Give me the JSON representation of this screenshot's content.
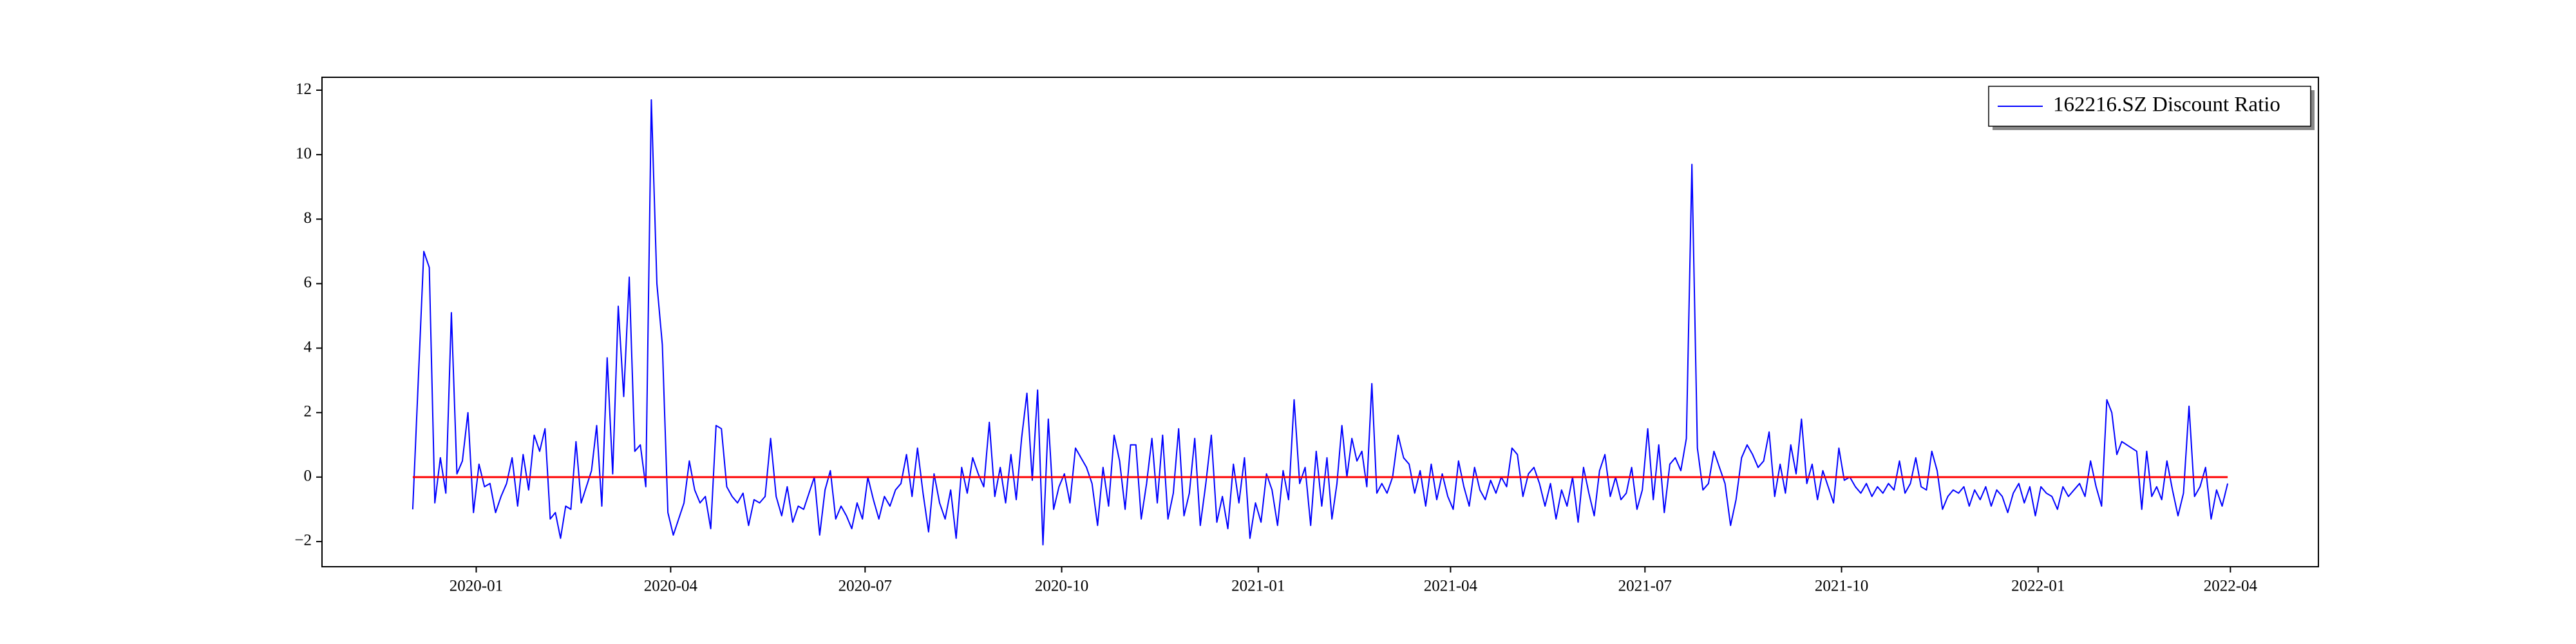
{
  "chart_data": {
    "type": "line",
    "x": [
      "2019-12",
      "2019-12",
      "2019-12",
      "2019-12",
      "2019-12",
      "2019-12",
      "2019-12",
      "2019-12",
      "2019-12",
      "2019-12",
      "2019-12",
      "2019-12",
      "2020-01",
      "2020-01",
      "2020-01",
      "2020-01",
      "2020-01",
      "2020-01",
      "2020-01",
      "2020-01",
      "2020-01",
      "2020-01",
      "2020-01",
      "2020-01",
      "2020-02",
      "2020-02",
      "2020-02",
      "2020-02",
      "2020-02",
      "2020-02",
      "2020-02",
      "2020-02",
      "2020-02",
      "2020-02",
      "2020-02",
      "2020-02",
      "2020-03",
      "2020-03",
      "2020-03",
      "2020-03",
      "2020-03",
      "2020-03",
      "2020-03",
      "2020-03",
      "2020-03",
      "2020-03",
      "2020-03",
      "2020-03",
      "2020-04",
      "2020-04",
      "2020-04",
      "2020-04",
      "2020-04",
      "2020-04",
      "2020-04",
      "2020-04",
      "2020-04",
      "2020-04",
      "2020-04",
      "2020-04",
      "2020-05",
      "2020-05",
      "2020-05",
      "2020-05",
      "2020-05",
      "2020-05",
      "2020-05",
      "2020-05",
      "2020-05",
      "2020-05",
      "2020-05",
      "2020-05",
      "2020-06",
      "2020-06",
      "2020-06",
      "2020-06",
      "2020-06",
      "2020-06",
      "2020-06",
      "2020-06",
      "2020-06",
      "2020-06",
      "2020-06",
      "2020-06",
      "2020-07",
      "2020-07",
      "2020-07",
      "2020-07",
      "2020-07",
      "2020-07",
      "2020-07",
      "2020-07",
      "2020-07",
      "2020-07",
      "2020-07",
      "2020-07",
      "2020-08",
      "2020-08",
      "2020-08",
      "2020-08",
      "2020-08",
      "2020-08",
      "2020-08",
      "2020-08",
      "2020-08",
      "2020-08",
      "2020-08",
      "2020-08",
      "2020-09",
      "2020-09",
      "2020-09",
      "2020-09",
      "2020-09",
      "2020-09",
      "2020-09",
      "2020-09",
      "2020-09",
      "2020-09",
      "2020-09",
      "2020-09",
      "2020-10",
      "2020-10",
      "2020-10",
      "2020-10",
      "2020-10",
      "2020-10",
      "2020-10",
      "2020-10",
      "2020-10",
      "2020-10",
      "2020-10",
      "2020-10",
      "2020-11",
      "2020-11",
      "2020-11",
      "2020-11",
      "2020-11",
      "2020-11",
      "2020-11",
      "2020-11",
      "2020-11",
      "2020-11",
      "2020-11",
      "2020-11",
      "2020-12",
      "2020-12",
      "2020-12",
      "2020-12",
      "2020-12",
      "2020-12",
      "2020-12",
      "2020-12",
      "2020-12",
      "2020-12",
      "2020-12",
      "2020-12",
      "2021-01",
      "2021-01",
      "2021-01",
      "2021-01",
      "2021-01",
      "2021-01",
      "2021-01",
      "2021-01",
      "2021-01",
      "2021-01",
      "2021-01",
      "2021-01",
      "2021-02",
      "2021-02",
      "2021-02",
      "2021-02",
      "2021-02",
      "2021-02",
      "2021-02",
      "2021-02",
      "2021-02",
      "2021-02",
      "2021-02",
      "2021-02",
      "2021-03",
      "2021-03",
      "2021-03",
      "2021-03",
      "2021-03",
      "2021-03",
      "2021-03",
      "2021-03",
      "2021-03",
      "2021-03",
      "2021-03",
      "2021-03",
      "2021-04",
      "2021-04",
      "2021-04",
      "2021-04",
      "2021-04",
      "2021-04",
      "2021-04",
      "2021-04",
      "2021-04",
      "2021-04",
      "2021-04",
      "2021-04",
      "2021-05",
      "2021-05",
      "2021-05",
      "2021-05",
      "2021-05",
      "2021-05",
      "2021-05",
      "2021-05",
      "2021-05",
      "2021-05",
      "2021-05",
      "2021-05",
      "2021-06",
      "2021-06",
      "2021-06",
      "2021-06",
      "2021-06",
      "2021-06",
      "2021-06",
      "2021-06",
      "2021-06",
      "2021-06",
      "2021-06",
      "2021-06",
      "2021-07",
      "2021-07",
      "2021-07",
      "2021-07",
      "2021-07",
      "2021-07",
      "2021-07",
      "2021-07",
      "2021-07",
      "2021-07",
      "2021-07",
      "2021-07",
      "2021-08",
      "2021-08",
      "2021-08",
      "2021-08",
      "2021-08",
      "2021-08",
      "2021-08",
      "2021-08",
      "2021-08",
      "2021-08",
      "2021-08",
      "2021-08",
      "2021-09",
      "2021-09",
      "2021-09",
      "2021-09",
      "2021-09",
      "2021-09",
      "2021-09",
      "2021-09",
      "2021-09",
      "2021-09",
      "2021-09",
      "2021-09",
      "2021-10",
      "2021-10",
      "2021-10",
      "2021-10",
      "2021-10",
      "2021-10",
      "2021-10",
      "2021-10",
      "2021-10",
      "2021-10",
      "2021-10",
      "2021-10",
      "2021-11",
      "2021-11",
      "2021-11",
      "2021-11",
      "2021-11",
      "2021-11",
      "2021-11",
      "2021-11",
      "2021-11",
      "2021-11",
      "2021-11",
      "2021-11",
      "2021-12",
      "2021-12",
      "2021-12",
      "2021-12",
      "2021-12",
      "2021-12",
      "2021-12",
      "2021-12",
      "2021-12",
      "2021-12",
      "2021-12",
      "2021-12",
      "2022-01",
      "2022-01",
      "2022-01",
      "2022-01",
      "2022-01",
      "2022-01",
      "2022-01",
      "2022-01",
      "2022-01",
      "2022-01",
      "2022-01",
      "2022-01",
      "2022-02",
      "2022-02",
      "2022-02",
      "2022-02",
      "2022-02",
      "2022-02",
      "2022-02",
      "2022-02",
      "2022-02",
      "2022-02",
      "2022-02",
      "2022-02",
      "2022-03",
      "2022-03",
      "2022-03",
      "2022-03",
      "2022-03",
      "2022-03",
      "2022-03",
      "2022-03",
      "2022-03",
      "2022-03",
      "2022-03",
      "2022-03"
    ],
    "series": [
      {
        "name": "162216.SZ Discount Ratio",
        "color": "#0000ff",
        "values": [
          -1.0,
          3.0,
          7.0,
          6.5,
          -0.8,
          0.6,
          -0.5,
          5.1,
          0.1,
          0.5,
          2.0,
          -1.1,
          0.4,
          -0.3,
          -0.2,
          -1.1,
          -0.6,
          -0.2,
          0.6,
          -0.9,
          0.7,
          -0.4,
          1.3,
          0.8,
          1.5,
          -1.3,
          -1.1,
          -1.9,
          -0.9,
          -1.0,
          1.1,
          -0.8,
          -0.3,
          0.2,
          1.6,
          -0.9,
          3.7,
          0.1,
          5.3,
          2.5,
          6.2,
          0.8,
          1.0,
          -0.3,
          11.7,
          6.0,
          4.1,
          -1.1,
          -1.8,
          -1.3,
          -0.8,
          0.5,
          -0.4,
          -0.8,
          -0.6,
          -1.6,
          1.6,
          1.5,
          -0.3,
          -0.6,
          -0.8,
          -0.5,
          -1.5,
          -0.7,
          -0.8,
          -0.6,
          1.2,
          -0.6,
          -1.2,
          -0.3,
          -1.4,
          -0.9,
          -1.0,
          -0.5,
          0.0,
          -1.8,
          -0.4,
          0.2,
          -1.3,
          -0.9,
          -1.2,
          -1.6,
          -0.8,
          -1.3,
          0.0,
          -0.7,
          -1.3,
          -0.6,
          -0.9,
          -0.4,
          -0.2,
          0.7,
          -0.6,
          0.9,
          -0.5,
          -1.7,
          0.1,
          -0.8,
          -1.3,
          -0.4,
          -1.9,
          0.3,
          -0.5,
          0.6,
          0.1,
          -0.3,
          1.7,
          -0.6,
          0.3,
          -0.8,
          0.7,
          -0.7,
          1.2,
          2.6,
          -0.1,
          2.7,
          -2.1,
          1.8,
          -1.0,
          -0.3,
          0.1,
          -0.8,
          0.9,
          0.6,
          0.3,
          -0.2,
          -1.5,
          0.3,
          -0.9,
          1.3,
          0.5,
          -1.0,
          1.0,
          1.0,
          -1.3,
          -0.2,
          1.2,
          -0.8,
          1.3,
          -1.3,
          -0.5,
          1.5,
          -1.2,
          -0.5,
          1.2,
          -1.5,
          -0.2,
          1.3,
          -1.4,
          -0.6,
          -1.6,
          0.4,
          -0.8,
          0.6,
          -1.9,
          -0.8,
          -1.4,
          0.1,
          -0.4,
          -1.5,
          0.2,
          -0.7,
          2.4,
          -0.2,
          0.3,
          -1.5,
          0.8,
          -0.9,
          0.6,
          -1.3,
          -0.2,
          1.6,
          0.0,
          1.2,
          0.5,
          0.8,
          -0.3,
          2.9,
          -0.5,
          -0.2,
          -0.5,
          0.0,
          1.3,
          0.6,
          0.4,
          -0.5,
          0.2,
          -0.9,
          0.4,
          -0.7,
          0.1,
          -0.6,
          -1.0,
          0.5,
          -0.3,
          -0.9,
          0.3,
          -0.4,
          -0.7,
          -0.1,
          -0.5,
          0.0,
          -0.3,
          0.9,
          0.7,
          -0.6,
          0.1,
          0.3,
          -0.2,
          -0.9,
          -0.2,
          -1.3,
          -0.4,
          -0.9,
          0.0,
          -1.4,
          0.3,
          -0.5,
          -1.2,
          0.2,
          0.7,
          -0.6,
          0.0,
          -0.7,
          -0.5,
          0.3,
          -1.0,
          -0.4,
          1.5,
          -0.7,
          1.0,
          -1.1,
          0.4,
          0.6,
          0.2,
          1.2,
          9.7,
          0.9,
          -0.4,
          -0.2,
          0.8,
          0.3,
          -0.2,
          -1.5,
          -0.7,
          0.6,
          1.0,
          0.7,
          0.3,
          0.5,
          1.4,
          -0.6,
          0.4,
          -0.5,
          1.0,
          0.1,
          1.8,
          -0.2,
          0.4,
          -0.7,
          0.2,
          -0.3,
          -0.8,
          0.9,
          -0.1,
          0.0,
          -0.3,
          -0.5,
          -0.2,
          -0.6,
          -0.3,
          -0.5,
          -0.2,
          -0.4,
          0.5,
          -0.5,
          -0.2,
          0.6,
          -0.3,
          -0.4,
          0.8,
          0.2,
          -1.0,
          -0.6,
          -0.4,
          -0.5,
          -0.3,
          -0.9,
          -0.4,
          -0.7,
          -0.3,
          -0.9,
          -0.4,
          -0.6,
          -1.1,
          -0.5,
          -0.2,
          -0.8,
          -0.3,
          -1.2,
          -0.3,
          -0.5,
          -0.6,
          -1.0,
          -0.3,
          -0.6,
          -0.4,
          -0.2,
          -0.6,
          0.5,
          -0.3,
          -0.9,
          2.4,
          2.0,
          0.7,
          1.1,
          1.0,
          0.9,
          0.8,
          -1.0,
          0.8,
          -0.6,
          -0.3,
          -0.7,
          0.5,
          -0.4,
          -1.2,
          -0.5,
          2.2,
          -0.6,
          -0.3,
          0.3,
          -1.3,
          -0.4,
          -0.9,
          -0.2
        ]
      }
    ],
    "reference_line": {
      "value": 0,
      "color": "#ff0000"
    },
    "ylim": [
      -2.78,
      12.4
    ],
    "yticks": [
      {
        "value": -2,
        "label": "−2"
      },
      0,
      2,
      4,
      6,
      8,
      10,
      12
    ],
    "xticks": [
      "2020-01",
      "2020-04",
      "2020-07",
      "2020-10",
      "2021-01",
      "2021-04",
      "2021-07",
      "2021-10",
      "2022-01",
      "2022-04"
    ],
    "legend": "upper right"
  }
}
